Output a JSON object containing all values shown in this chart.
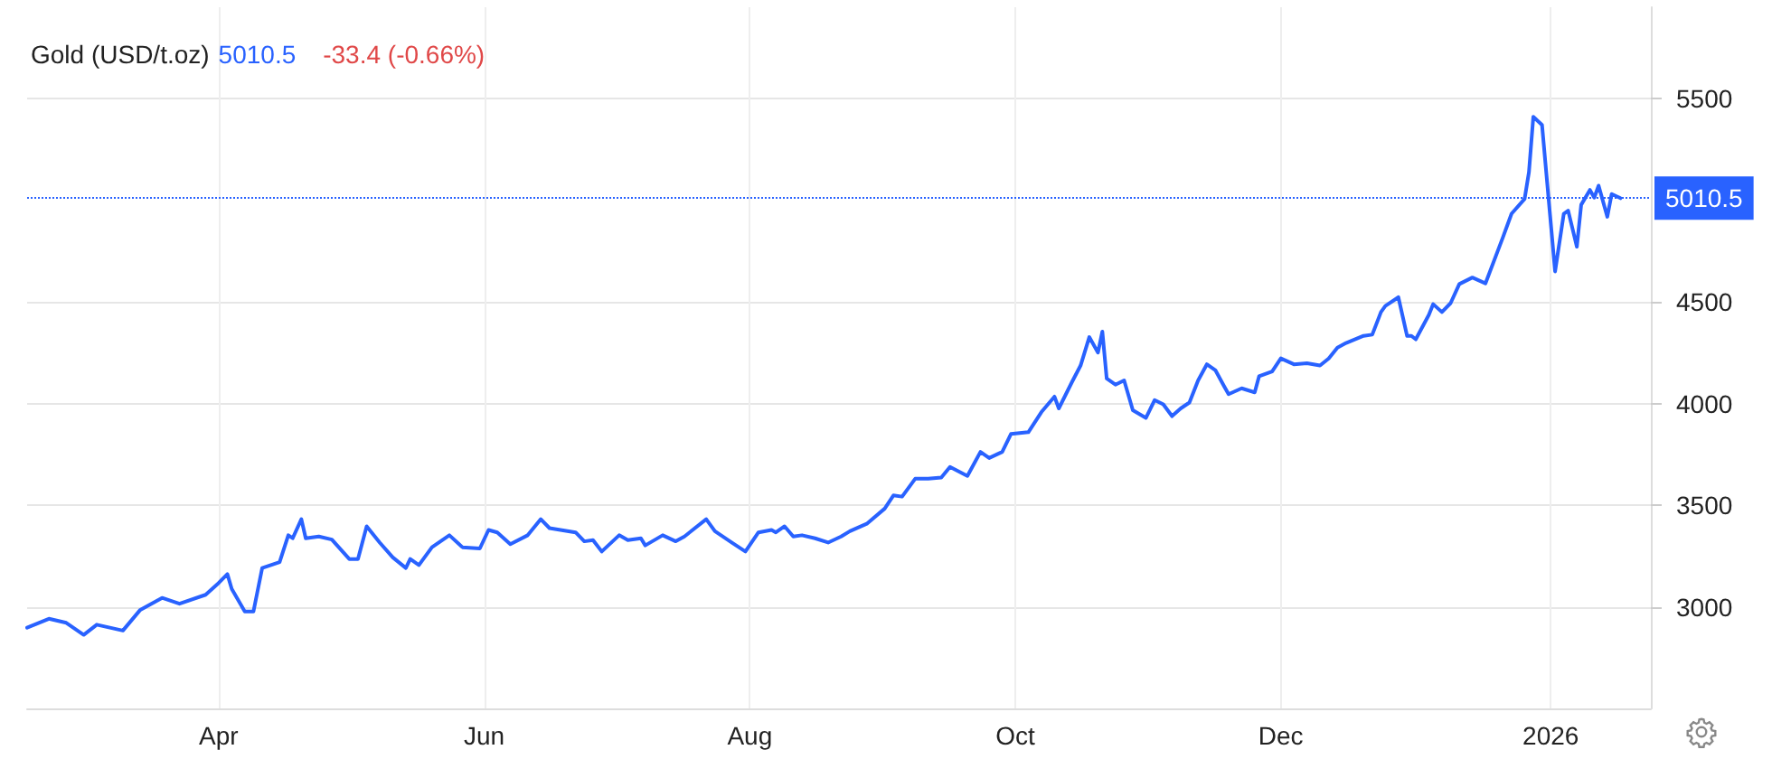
{
  "chart_data": {
    "type": "line",
    "title": "Gold (USD/t.oz)",
    "annotations": [
      "5010.5",
      "-33.4 (-0.66%)"
    ],
    "x": [
      "2025-02-16",
      "2025-02-21",
      "2025-02-25",
      "2025-03-01",
      "2025-03-04",
      "2025-03-10",
      "2025-03-14",
      "2025-03-19",
      "2025-03-23",
      "2025-03-29",
      "2025-04-01",
      "2025-04-03",
      "2025-04-04",
      "2025-04-07",
      "2025-04-09",
      "2025-04-11",
      "2025-04-15",
      "2025-04-17",
      "2025-04-18",
      "2025-04-20",
      "2025-04-21",
      "2025-04-24",
      "2025-04-27",
      "2025-05-01",
      "2025-05-03",
      "2025-05-05",
      "2025-05-08",
      "2025-05-11",
      "2025-05-14",
      "2025-05-15",
      "2025-05-17",
      "2025-05-20",
      "2025-05-24",
      "2025-05-27",
      "2025-05-31",
      "2025-06-02",
      "2025-06-04",
      "2025-06-07",
      "2025-06-11",
      "2025-06-14",
      "2025-06-16",
      "2025-06-22",
      "2025-06-24",
      "2025-06-26",
      "2025-06-28",
      "2025-07-02",
      "2025-07-04",
      "2025-07-07",
      "2025-07-08",
      "2025-07-12",
      "2025-07-15",
      "2025-07-17",
      "2025-07-22",
      "2025-07-24",
      "2025-07-28",
      "2025-07-31",
      "2025-08-03",
      "2025-08-06",
      "2025-08-07",
      "2025-08-09",
      "2025-08-11",
      "2025-08-13",
      "2025-08-16",
      "2025-08-19",
      "2025-08-22",
      "2025-08-24",
      "2025-08-28",
      "2025-09-01",
      "2025-09-03",
      "2025-09-05",
      "2025-09-08",
      "2025-09-11",
      "2025-09-14",
      "2025-09-16",
      "2025-09-20",
      "2025-09-23",
      "2025-09-25",
      "2025-09-28",
      "2025-09-30",
      "2025-10-04",
      "2025-10-07",
      "2025-10-10",
      "2025-10-11",
      "2025-10-14",
      "2025-10-16",
      "2025-10-18",
      "2025-10-20",
      "2025-10-21",
      "2025-10-22",
      "2025-10-24",
      "2025-10-26",
      "2025-10-28",
      "2025-10-31",
      "2025-11-02",
      "2025-11-04",
      "2025-11-06",
      "2025-11-08",
      "2025-11-10",
      "2025-11-12",
      "2025-11-14",
      "2025-11-16",
      "2025-11-18",
      "2025-11-19",
      "2025-11-22",
      "2025-11-25",
      "2025-11-26",
      "2025-11-29",
      "2025-12-01",
      "2025-12-04",
      "2025-12-07",
      "2025-12-10",
      "2025-12-12",
      "2025-12-14",
      "2025-12-16",
      "2025-12-20",
      "2025-12-22",
      "2025-12-24",
      "2025-12-25",
      "2025-12-28",
      "2025-12-30",
      "2025-12-31",
      "2026-01-01",
      "2026-01-04",
      "2026-01-05",
      "2026-01-07",
      "2026-01-09",
      "2026-01-11",
      "2026-01-14",
      "2026-01-17",
      "2026-01-21",
      "2026-01-23",
      "2026-01-26",
      "2026-01-27",
      "2026-01-28",
      "2026-01-30",
      "2026-02-02",
      "2026-02-04",
      "2026-02-05",
      "2026-02-07",
      "2026-02-08",
      "2026-02-10",
      "2026-02-11",
      "2026-02-12",
      "2026-02-14",
      "2026-02-15",
      "2026-02-17"
    ],
    "series": [
      {
        "color": "#2962ff",
        "values": [
          2897,
          2941,
          2921,
          2862,
          2912,
          2883,
          2985,
          3044,
          3015,
          3059,
          3117,
          3161,
          3088,
          2977,
          2977,
          3191,
          3220,
          3352,
          3337,
          3431,
          3337,
          3346,
          3331,
          3235,
          3235,
          3396,
          3316,
          3243,
          3191,
          3235,
          3205,
          3293,
          3352,
          3293,
          3287,
          3378,
          3366,
          3308,
          3352,
          3431,
          3387,
          3366,
          3322,
          3328,
          3272,
          3352,
          3328,
          3337,
          3302,
          3352,
          3322,
          3346,
          3431,
          3372,
          3314,
          3272,
          3366,
          3378,
          3366,
          3396,
          3346,
          3352,
          3337,
          3316,
          3346,
          3372,
          3410,
          3483,
          3548,
          3542,
          3630,
          3630,
          3636,
          3688,
          3644,
          3762,
          3732,
          3762,
          3850,
          3859,
          3958,
          4034,
          3976,
          4105,
          4187,
          4327,
          4251,
          4354,
          4123,
          4093,
          4114,
          3967,
          3929,
          4017,
          3996,
          3938,
          3976,
          4005,
          4114,
          4193,
          4163,
          4084,
          4046,
          4075,
          4055,
          4134,
          4158,
          4222,
          4193,
          4198,
          4187,
          4222,
          4275,
          4298,
          4333,
          4339,
          4450,
          4480,
          4523,
          4333,
          4333,
          4316,
          4436,
          4489,
          4450,
          4494,
          4588,
          4620,
          4591,
          4817,
          4934,
          5007,
          5139,
          5411,
          5371,
          4650,
          4934,
          4949,
          4772,
          4978,
          5051,
          5013,
          5072,
          4919,
          5031,
          5010.5
        ]
      }
    ],
    "xlim": [
      "2025-02-16",
      "2026-02-24"
    ],
    "xticks": [
      {
        "value": "2025-04-01",
        "label": "Apr"
      },
      {
        "value": "2025-06-01",
        "label": "Jun"
      },
      {
        "value": "2025-08-01",
        "label": "Aug"
      },
      {
        "value": "2025-10-01",
        "label": "Oct"
      },
      {
        "value": "2025-12-01",
        "label": "Dec"
      },
      {
        "value": "2026-02-01",
        "label": "2026"
      }
    ],
    "ylim": [
      2500,
      5950
    ],
    "yticks": [
      3000,
      3500,
      4000,
      4500,
      5500
    ],
    "ref_lines": [
      {
        "axis": "y",
        "value": 5010.5,
        "label": "5010.5",
        "color": "#2962ff",
        "line_style": "dotted"
      }
    ],
    "grid": true,
    "marker": "none",
    "line_style": "solid"
  }
}
